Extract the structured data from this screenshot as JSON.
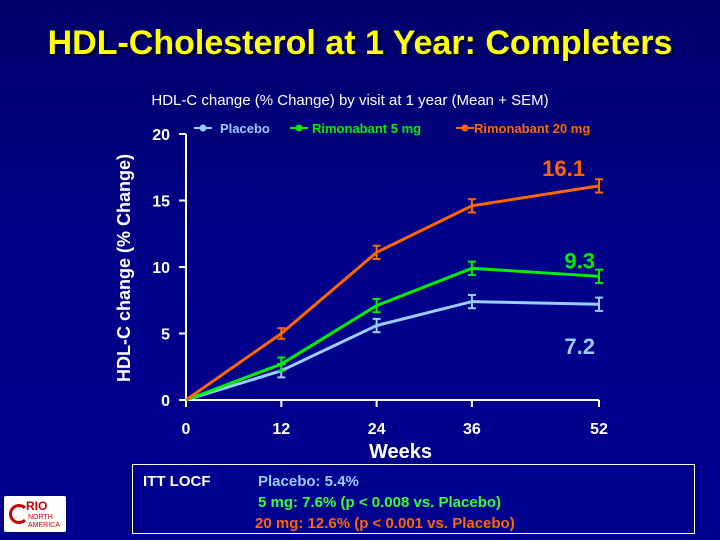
{
  "slide": {
    "title": "HDL-Cholesterol at 1 Year: Completers",
    "subtitle": "HDL-C change (% Change) by visit at 1 year (Mean + SEM)"
  },
  "stats_box": {
    "label": "ITT LOCF",
    "lines": [
      "Placebo: 5.4%",
      "5 mg:  7.6% (p < 0.008 vs. Placebo)",
      "20 mg: 12.6% (p < 0.001 vs. Placebo)"
    ]
  },
  "logo": {
    "text_main": "RIO",
    "text_sub": [
      "NORTH",
      "AMERICA"
    ]
  },
  "chart_data": {
    "type": "line",
    "xlabel": "Weeks",
    "ylabel": "HDL-C change (% Change)",
    "x": [
      0,
      12,
      24,
      36,
      52
    ],
    "xlim": [
      0,
      52
    ],
    "ylim": [
      0,
      20
    ],
    "yticks": [
      0,
      5,
      10,
      15,
      20
    ],
    "legend_position": "top",
    "grid": false,
    "series": [
      {
        "name": "Placebo",
        "color": "#99ccff",
        "values": [
          0,
          2.2,
          5.6,
          7.4,
          7.2
        ],
        "sem": [
          0,
          0.5,
          0.5,
          0.5,
          0.5
        ],
        "end_label": "7.2"
      },
      {
        "name": "Rimonabant 5 mg",
        "color": "#00ee00",
        "values": [
          0,
          2.7,
          7.1,
          9.9,
          9.3
        ],
        "sem": [
          0,
          0.5,
          0.5,
          0.5,
          0.5
        ],
        "end_label": "9.3"
      },
      {
        "name": "Rimonabant 20 mg",
        "color": "#ff6600",
        "values": [
          0,
          5.0,
          11.1,
          14.6,
          16.1
        ],
        "sem": [
          0,
          0.4,
          0.5,
          0.5,
          0.5
        ],
        "end_label": "16.1"
      }
    ]
  }
}
